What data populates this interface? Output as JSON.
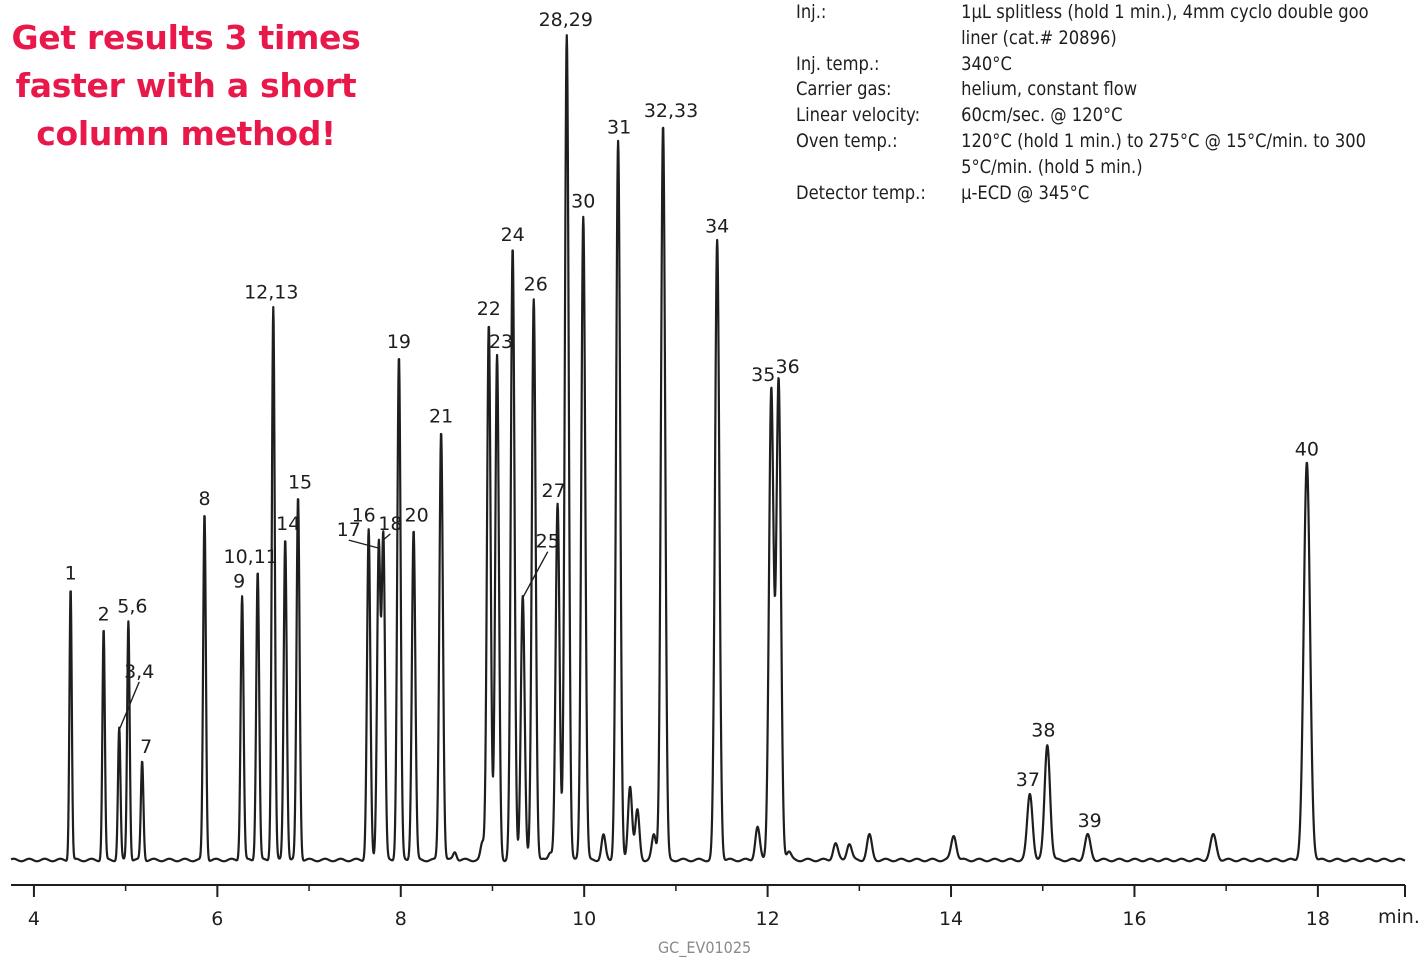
{
  "headline": {
    "line1": "Get results 3 times",
    "line2": "faster with a short",
    "line3": "column method!"
  },
  "conditions": [
    {
      "label": "Inj.:",
      "value": "1µL splitless (hold 1 min.), 4mm cyclo double goo"
    },
    {
      "label": "",
      "value": "liner (cat.# 20896)"
    },
    {
      "label": "Inj. temp.:",
      "value": "340°C"
    },
    {
      "label": "Carrier gas:",
      "value": "helium, constant flow"
    },
    {
      "label": "Linear velocity:",
      "value": "60cm/sec. @ 120°C"
    },
    {
      "label": "Oven temp.:",
      "value": "120°C (hold 1 min.) to 275°C @ 15°C/min. to 300"
    },
    {
      "label": "",
      "value": "5°C/min. (hold 5 min.)"
    },
    {
      "label": "Detector temp.:",
      "value": "µ-ECD @ 345°C"
    }
  ],
  "image_code": "GC_EV01025",
  "chart_data": {
    "type": "line",
    "xlabel": "min.",
    "xlim": [
      3.75,
      18.95
    ],
    "ylim": [
      0,
      1
    ],
    "x_ticks": [
      "4",
      "6",
      "8",
      "10",
      "12",
      "14",
      "16",
      "18"
    ],
    "line_color": "#1e1e1e",
    "peaks": [
      {
        "id": "1",
        "rt": 4.4,
        "height": 0.33
      },
      {
        "id": "2",
        "rt": 4.76,
        "height": 0.28
      },
      {
        "id": "3,4",
        "rt": 4.93,
        "height": 0.16
      },
      {
        "id": "5,6",
        "rt": 5.03,
        "height": 0.29
      },
      {
        "id": "7",
        "rt": 5.18,
        "height": 0.12
      },
      {
        "id": "8",
        "rt": 5.86,
        "height": 0.42
      },
      {
        "id": "9",
        "rt": 6.27,
        "height": 0.32
      },
      {
        "id": "10,11",
        "rt": 6.44,
        "height": 0.35
      },
      {
        "id": "12,13",
        "rt": 6.61,
        "height": 0.67
      },
      {
        "id": "14",
        "rt": 6.74,
        "height": 0.39
      },
      {
        "id": "15",
        "rt": 6.88,
        "height": 0.44
      },
      {
        "id": "16",
        "rt": 7.65,
        "height": 0.4
      },
      {
        "id": "17",
        "rt": 7.76,
        "height": 0.38
      },
      {
        "id": "18",
        "rt": 7.81,
        "height": 0.39
      },
      {
        "id": "19",
        "rt": 7.98,
        "height": 0.61
      },
      {
        "id": "20",
        "rt": 8.14,
        "height": 0.4
      },
      {
        "id": "21",
        "rt": 8.44,
        "height": 0.52
      },
      {
        "id": "22",
        "rt": 8.96,
        "height": 0.65
      },
      {
        "id": "23",
        "rt": 9.05,
        "height": 0.61
      },
      {
        "id": "24",
        "rt": 9.22,
        "height": 0.74
      },
      {
        "id": "25",
        "rt": 9.33,
        "height": 0.32
      },
      {
        "id": "26",
        "rt": 9.45,
        "height": 0.68
      },
      {
        "id": "27",
        "rt": 9.71,
        "height": 0.43
      },
      {
        "id": "28,29",
        "rt": 9.81,
        "height": 1.0
      },
      {
        "id": "30",
        "rt": 9.99,
        "height": 0.78
      },
      {
        "id": "31",
        "rt": 10.37,
        "height": 0.87
      },
      {
        "id": "32,33",
        "rt": 10.86,
        "height": 0.89
      },
      {
        "id": "34",
        "rt": 11.45,
        "height": 0.75
      },
      {
        "id": "35",
        "rt": 12.04,
        "height": 0.57
      },
      {
        "id": "36",
        "rt": 12.12,
        "height": 0.58
      },
      {
        "id": "37",
        "rt": 14.86,
        "height": 0.08
      },
      {
        "id": "38",
        "rt": 15.05,
        "height": 0.14
      },
      {
        "id": "39",
        "rt": 15.49,
        "height": 0.03
      },
      {
        "id": "40",
        "rt": 17.88,
        "height": 0.48
      }
    ],
    "minor_peaks": [
      {
        "rt": 8.59,
        "height": 0.01
      },
      {
        "rt": 8.89,
        "height": 0.02
      },
      {
        "rt": 9.63,
        "height": 0.01
      },
      {
        "rt": 10.21,
        "height": 0.03
      },
      {
        "rt": 10.5,
        "height": 0.09
      },
      {
        "rt": 10.58,
        "height": 0.06
      },
      {
        "rt": 10.76,
        "height": 0.03
      },
      {
        "rt": 11.89,
        "height": 0.04
      },
      {
        "rt": 12.23,
        "height": 0.01
      },
      {
        "rt": 12.74,
        "height": 0.02
      },
      {
        "rt": 12.89,
        "height": 0.02
      },
      {
        "rt": 13.11,
        "height": 0.03
      },
      {
        "rt": 14.03,
        "height": 0.03
      },
      {
        "rt": 16.86,
        "height": 0.03
      }
    ]
  }
}
